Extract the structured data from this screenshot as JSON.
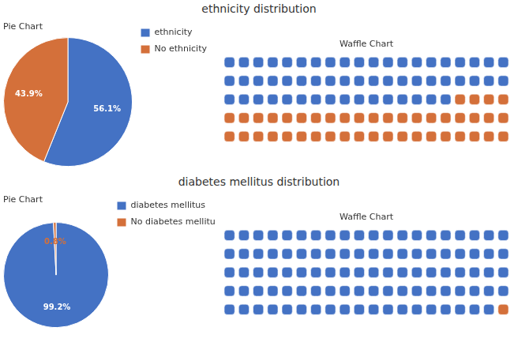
{
  "chart_data": [
    {
      "type": "pie",
      "title": "ethnicity distribution",
      "subtitle": "Pie Chart",
      "categories": [
        "ethnicity",
        "No ethnicity"
      ],
      "values": [
        56.1,
        43.9
      ],
      "value_labels": [
        "56.1%",
        "43.9%"
      ],
      "colors": [
        "#4472C4",
        "#D4703A"
      ],
      "data_labels": true,
      "legend": "right"
    },
    {
      "type": "waffle",
      "title": "Waffle Chart",
      "values": [
        56,
        44
      ],
      "colors": [
        "#4472C4",
        "#D4703A"
      ]
    },
    {
      "type": "pie",
      "title": "diabetes mellitus distribution",
      "subtitle": "Pie Chart",
      "categories": [
        "diabetes mellitus",
        "No diabetes mellitus"
      ],
      "values": [
        99.2,
        0.8
      ],
      "value_labels": [
        "99.2%",
        "0.8%"
      ],
      "colors": [
        "#4472C4",
        "#D4703A"
      ],
      "data_labels": true,
      "legend": "right"
    },
    {
      "type": "waffle",
      "title": "Waffle Chart",
      "values": [
        99,
        1
      ],
      "colors": [
        "#4472C4",
        "#D4703A"
      ]
    }
  ]
}
